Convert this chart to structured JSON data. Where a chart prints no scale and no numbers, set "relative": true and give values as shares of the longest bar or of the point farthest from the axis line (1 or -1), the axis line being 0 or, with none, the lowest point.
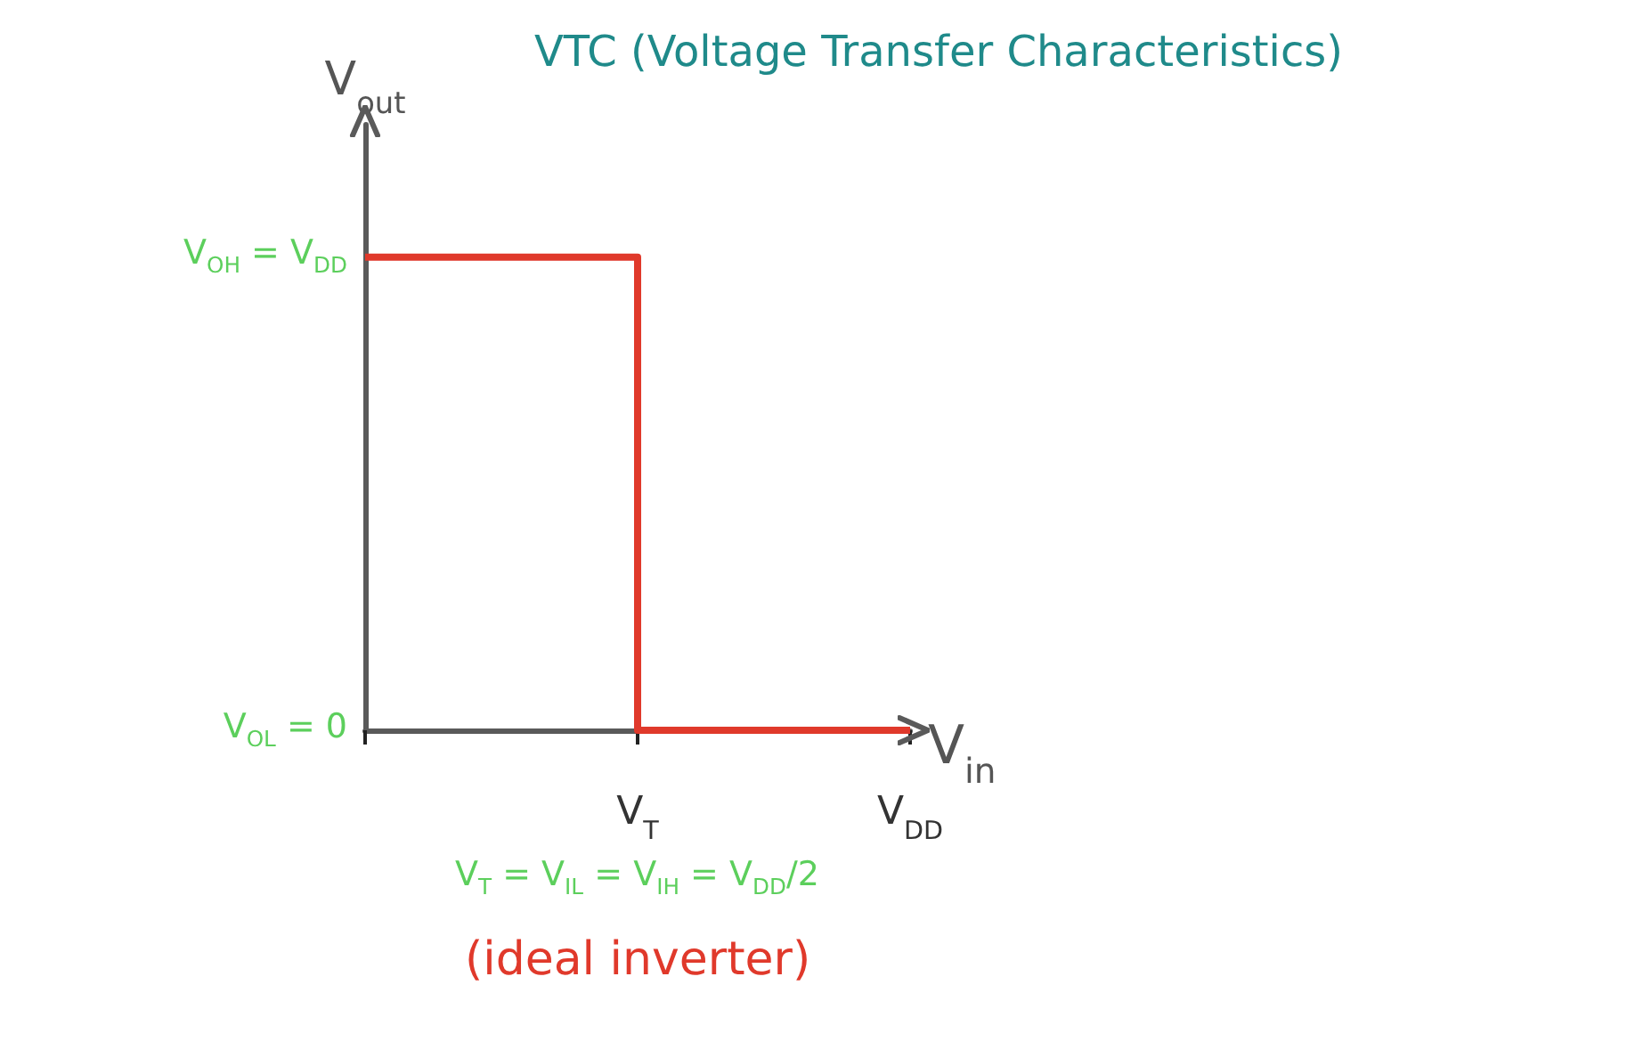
{
  "chart_data": {
    "type": "step",
    "title": "VTC (Voltage Transfer Characteristics)",
    "xlabel": "V$_{in}$",
    "ylabel": "V$_{out}$",
    "categories": [
      null,
      "V$_{T}$",
      "V$_{DD}$"
    ],
    "series": [
      {
        "color": "#e0392b",
        "values": [
          1,
          0,
          0
        ]
      }
    ],
    "relative": true,
    "grid": false,
    "marker": "none",
    "annotations": [
      "V$_{OH}$ = V$_{DD}$",
      "V$_{OL}$ = 0",
      "V$_{T}$ = V$_{IL}$ = V$_{IH}$ = V$_{DD}$/2",
      "(ideal inverter)"
    ]
  }
}
